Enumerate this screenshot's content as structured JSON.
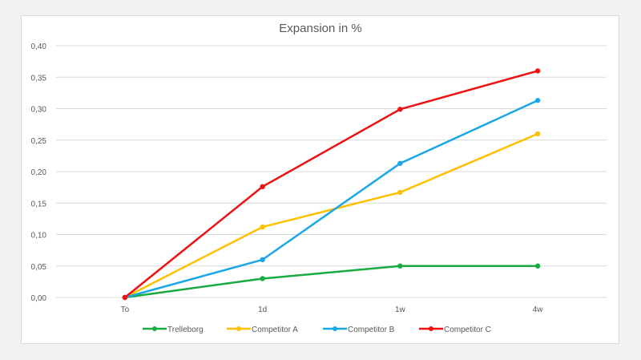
{
  "chart_data": {
    "type": "line",
    "title": "Expansion in %",
    "xlabel": "",
    "ylabel": "",
    "categories": [
      "To",
      "1d",
      "1w",
      "4w"
    ],
    "ylim": [
      0,
      0.4
    ],
    "yticks": [
      "0,00",
      "0,05",
      "0,10",
      "0,15",
      "0,20",
      "0,25",
      "0,30",
      "0,35",
      "0,40"
    ],
    "grid": true,
    "legend_position": "bottom",
    "series": [
      {
        "name": "Trelleborg",
        "color": "#1aab40",
        "values": [
          0,
          0.03,
          0.05,
          0.05
        ]
      },
      {
        "name": "Competitor A",
        "color": "#ffc000",
        "values": [
          0,
          0.112,
          0.167,
          0.26
        ]
      },
      {
        "name": "Competitor B",
        "color": "#1aa7e6",
        "values": [
          0,
          0.06,
          0.213,
          0.313
        ]
      },
      {
        "name": "Competitor C",
        "color": "#ee1111",
        "values": [
          0,
          0.176,
          0.299,
          0.36
        ]
      }
    ]
  }
}
